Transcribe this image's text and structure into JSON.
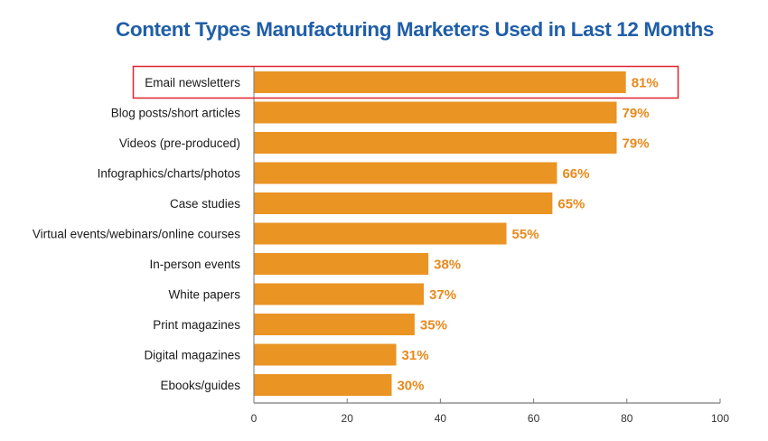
{
  "chart_data": {
    "type": "bar",
    "orientation": "horizontal",
    "title": "Content Types Manufacturing Marketers Used in Last 12 Months",
    "xlabel": "",
    "ylabel": "",
    "categories": [
      "Email newsletters",
      "Blog posts/short articles",
      "Videos (pre-produced)",
      "Infographics/charts/photos",
      "Case studies",
      "Virtual events/webinars/online courses",
      "In-person events",
      "White papers",
      "Print magazines",
      "Digital magazines",
      "Ebooks/guides"
    ],
    "values": [
      81,
      79,
      79,
      66,
      65,
      55,
      38,
      37,
      35,
      31,
      30
    ],
    "value_labels": [
      "81%",
      "79%",
      "79%",
      "66%",
      "65%",
      "55%",
      "38%",
      "37%",
      "35%",
      "31%",
      "30%"
    ],
    "xlim": [
      0,
      100
    ],
    "xticks": [
      0,
      20,
      40,
      60,
      80,
      100
    ],
    "xtick_labels": [
      "0",
      "20",
      "40",
      "60",
      "80",
      "100"
    ],
    "grid": false,
    "legend": "none",
    "highlighted_category": "Email newsletters",
    "colors": {
      "bar": "#ea9424",
      "value_label": "#e8891c",
      "title": "#1f5ea8",
      "highlight_box": "#e0242c",
      "axis": "#7a7a7a"
    }
  }
}
